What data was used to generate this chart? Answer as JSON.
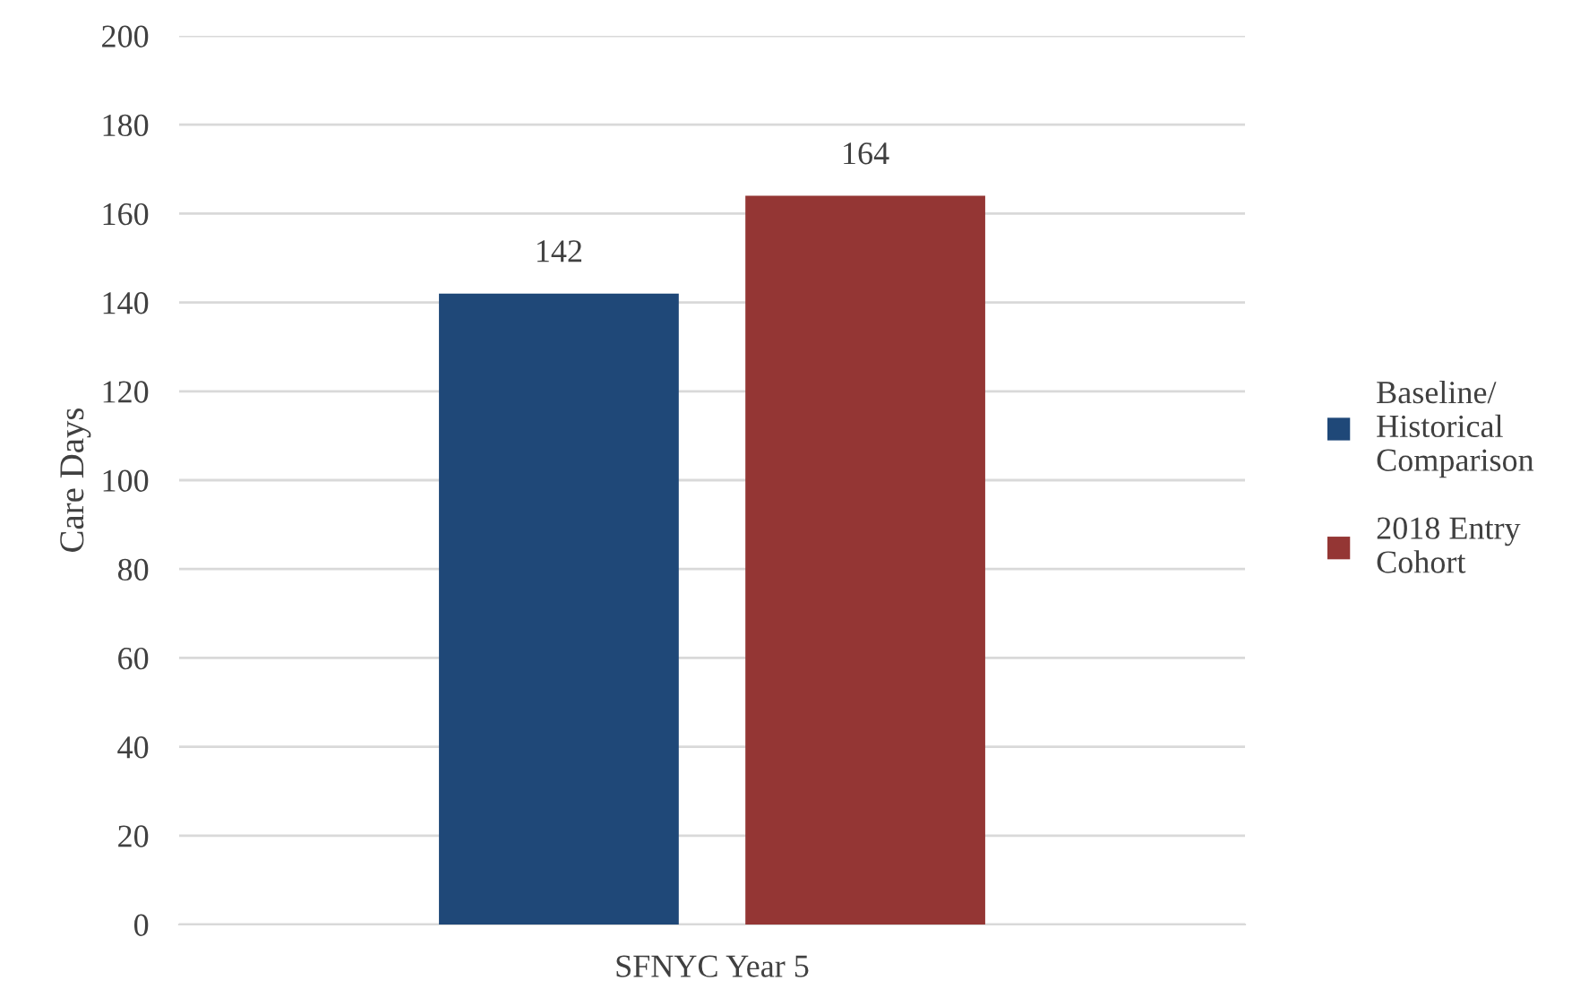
{
  "chart_data": {
    "type": "bar",
    "ylabel": "Care Days",
    "categories": [
      "SFNYC Year 5"
    ],
    "series": [
      {
        "name": "Baseline/\nHistorical\nComparison",
        "color": "#1f4878",
        "values": [
          142
        ]
      },
      {
        "name": "2018 Entry\nCohort",
        "color": "#943634",
        "values": [
          164
        ]
      }
    ],
    "ylim": [
      0,
      200
    ],
    "yticks": [
      0,
      20,
      40,
      60,
      80,
      100,
      120,
      140,
      160,
      180,
      200
    ],
    "grid": "y",
    "legend": "right",
    "data_labels": true
  }
}
